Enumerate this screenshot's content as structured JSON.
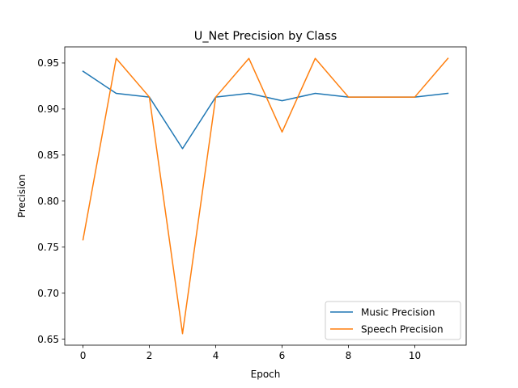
{
  "chart_data": {
    "type": "line",
    "title": "U_Net Precision by Class",
    "xlabel": "Epoch",
    "ylabel": "Precision",
    "x": [
      0,
      1,
      2,
      3,
      4,
      5,
      6,
      7,
      8,
      9,
      10,
      11
    ],
    "xlim": [
      -0.55,
      11.55
    ],
    "ylim": [
      0.6435,
      0.9675
    ],
    "xticks": [
      0,
      2,
      4,
      6,
      8,
      10
    ],
    "yticks": [
      0.65,
      0.7,
      0.75,
      0.8,
      0.85,
      0.9,
      0.95
    ],
    "xtick_labels": [
      "0",
      "2",
      "4",
      "6",
      "8",
      "10"
    ],
    "ytick_labels": [
      "0.65",
      "0.70",
      "0.75",
      "0.80",
      "0.85",
      "0.90",
      "0.95"
    ],
    "grid": false,
    "legend_position": "lower right",
    "series": [
      {
        "name": "Music Precision",
        "color": "#1f77b4",
        "values": [
          0.941,
          0.917,
          0.913,
          0.857,
          0.913,
          0.917,
          0.909,
          0.917,
          0.913,
          0.913,
          0.913,
          0.917
        ]
      },
      {
        "name": "Speech Precision",
        "color": "#ff7f0e",
        "values": [
          0.758,
          0.955,
          0.913,
          0.656,
          0.913,
          0.955,
          0.875,
          0.955,
          0.913,
          0.913,
          0.913,
          0.955
        ]
      }
    ]
  }
}
